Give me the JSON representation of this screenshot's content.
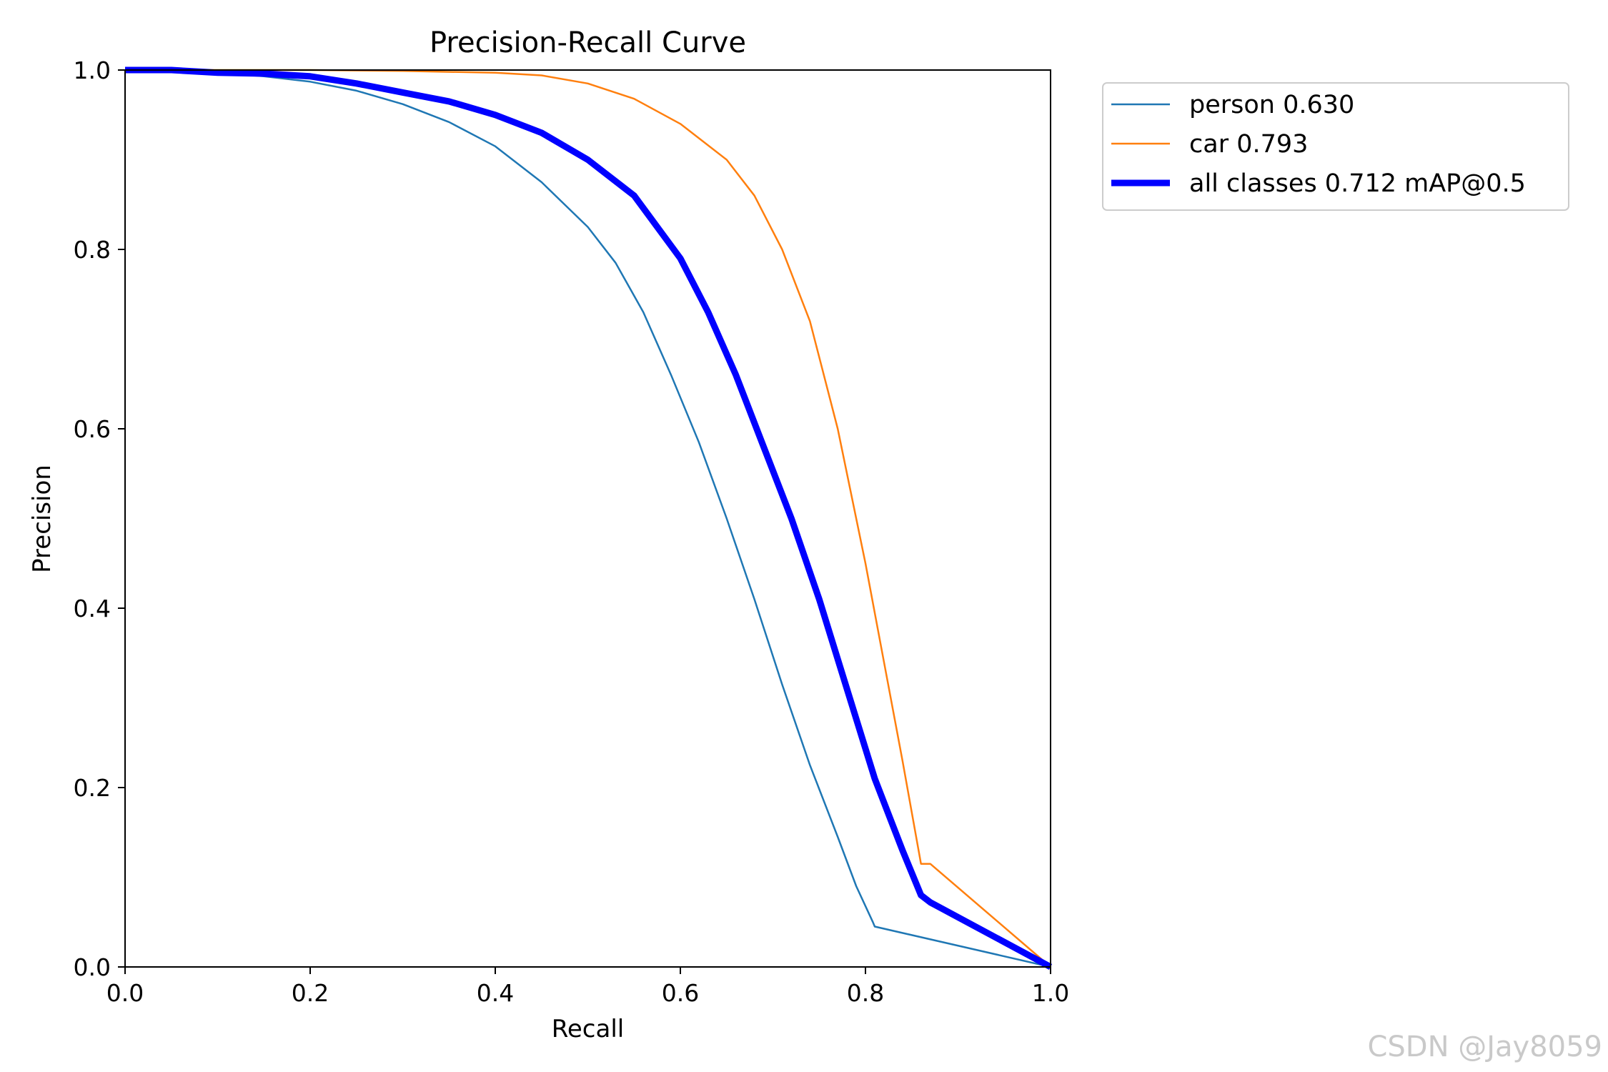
{
  "chart_data": {
    "type": "line",
    "title": "Precision-Recall Curve",
    "xlabel": "Recall",
    "ylabel": "Precision",
    "xlim": [
      0.0,
      1.0
    ],
    "ylim": [
      0.0,
      1.0
    ],
    "grid": false,
    "legend_placement": "outside top-right",
    "xticks": [
      "0.0",
      "0.2",
      "0.4",
      "0.6",
      "0.8",
      "1.0"
    ],
    "yticks": [
      "0.0",
      "0.2",
      "0.4",
      "0.6",
      "0.8",
      "1.0"
    ],
    "series": [
      {
        "name": "person",
        "legend": "person 0.630",
        "color": "#1f77b4",
        "width": "thin",
        "x": [
          0.0,
          0.05,
          0.1,
          0.15,
          0.2,
          0.25,
          0.3,
          0.35,
          0.4,
          0.45,
          0.5,
          0.53,
          0.56,
          0.59,
          0.62,
          0.65,
          0.68,
          0.71,
          0.74,
          0.77,
          0.79,
          0.808,
          0.81,
          1.0
        ],
        "y": [
          1.0,
          0.999,
          0.997,
          0.993,
          0.987,
          0.977,
          0.962,
          0.942,
          0.915,
          0.875,
          0.825,
          0.785,
          0.73,
          0.66,
          0.585,
          0.5,
          0.41,
          0.315,
          0.225,
          0.145,
          0.09,
          0.05,
          0.045,
          0.0
        ]
      },
      {
        "name": "car",
        "legend": "car 0.793",
        "color": "#ff7f0e",
        "width": "thin",
        "x": [
          0.0,
          0.1,
          0.2,
          0.3,
          0.4,
          0.45,
          0.5,
          0.55,
          0.6,
          0.65,
          0.68,
          0.71,
          0.74,
          0.77,
          0.8,
          0.82,
          0.84,
          0.86,
          0.87,
          1.0
        ],
        "y": [
          1.0,
          1.0,
          1.0,
          0.999,
          0.997,
          0.994,
          0.985,
          0.968,
          0.94,
          0.9,
          0.86,
          0.8,
          0.72,
          0.6,
          0.45,
          0.34,
          0.23,
          0.115,
          0.115,
          0.0
        ]
      },
      {
        "name": "all classes",
        "legend": "all classes 0.712 mAP@0.5",
        "color": "#0000ff",
        "width": "thick",
        "x": [
          0.0,
          0.05,
          0.1,
          0.15,
          0.2,
          0.25,
          0.3,
          0.35,
          0.4,
          0.45,
          0.5,
          0.55,
          0.6,
          0.63,
          0.66,
          0.69,
          0.72,
          0.75,
          0.78,
          0.81,
          0.84,
          0.86,
          0.87,
          1.0
        ],
        "y": [
          1.0,
          1.0,
          0.997,
          0.996,
          0.993,
          0.985,
          0.975,
          0.965,
          0.95,
          0.93,
          0.9,
          0.86,
          0.79,
          0.73,
          0.66,
          0.58,
          0.5,
          0.41,
          0.31,
          0.21,
          0.13,
          0.08,
          0.072,
          0.0
        ]
      }
    ]
  },
  "watermark": "CSDN @Jay8059"
}
